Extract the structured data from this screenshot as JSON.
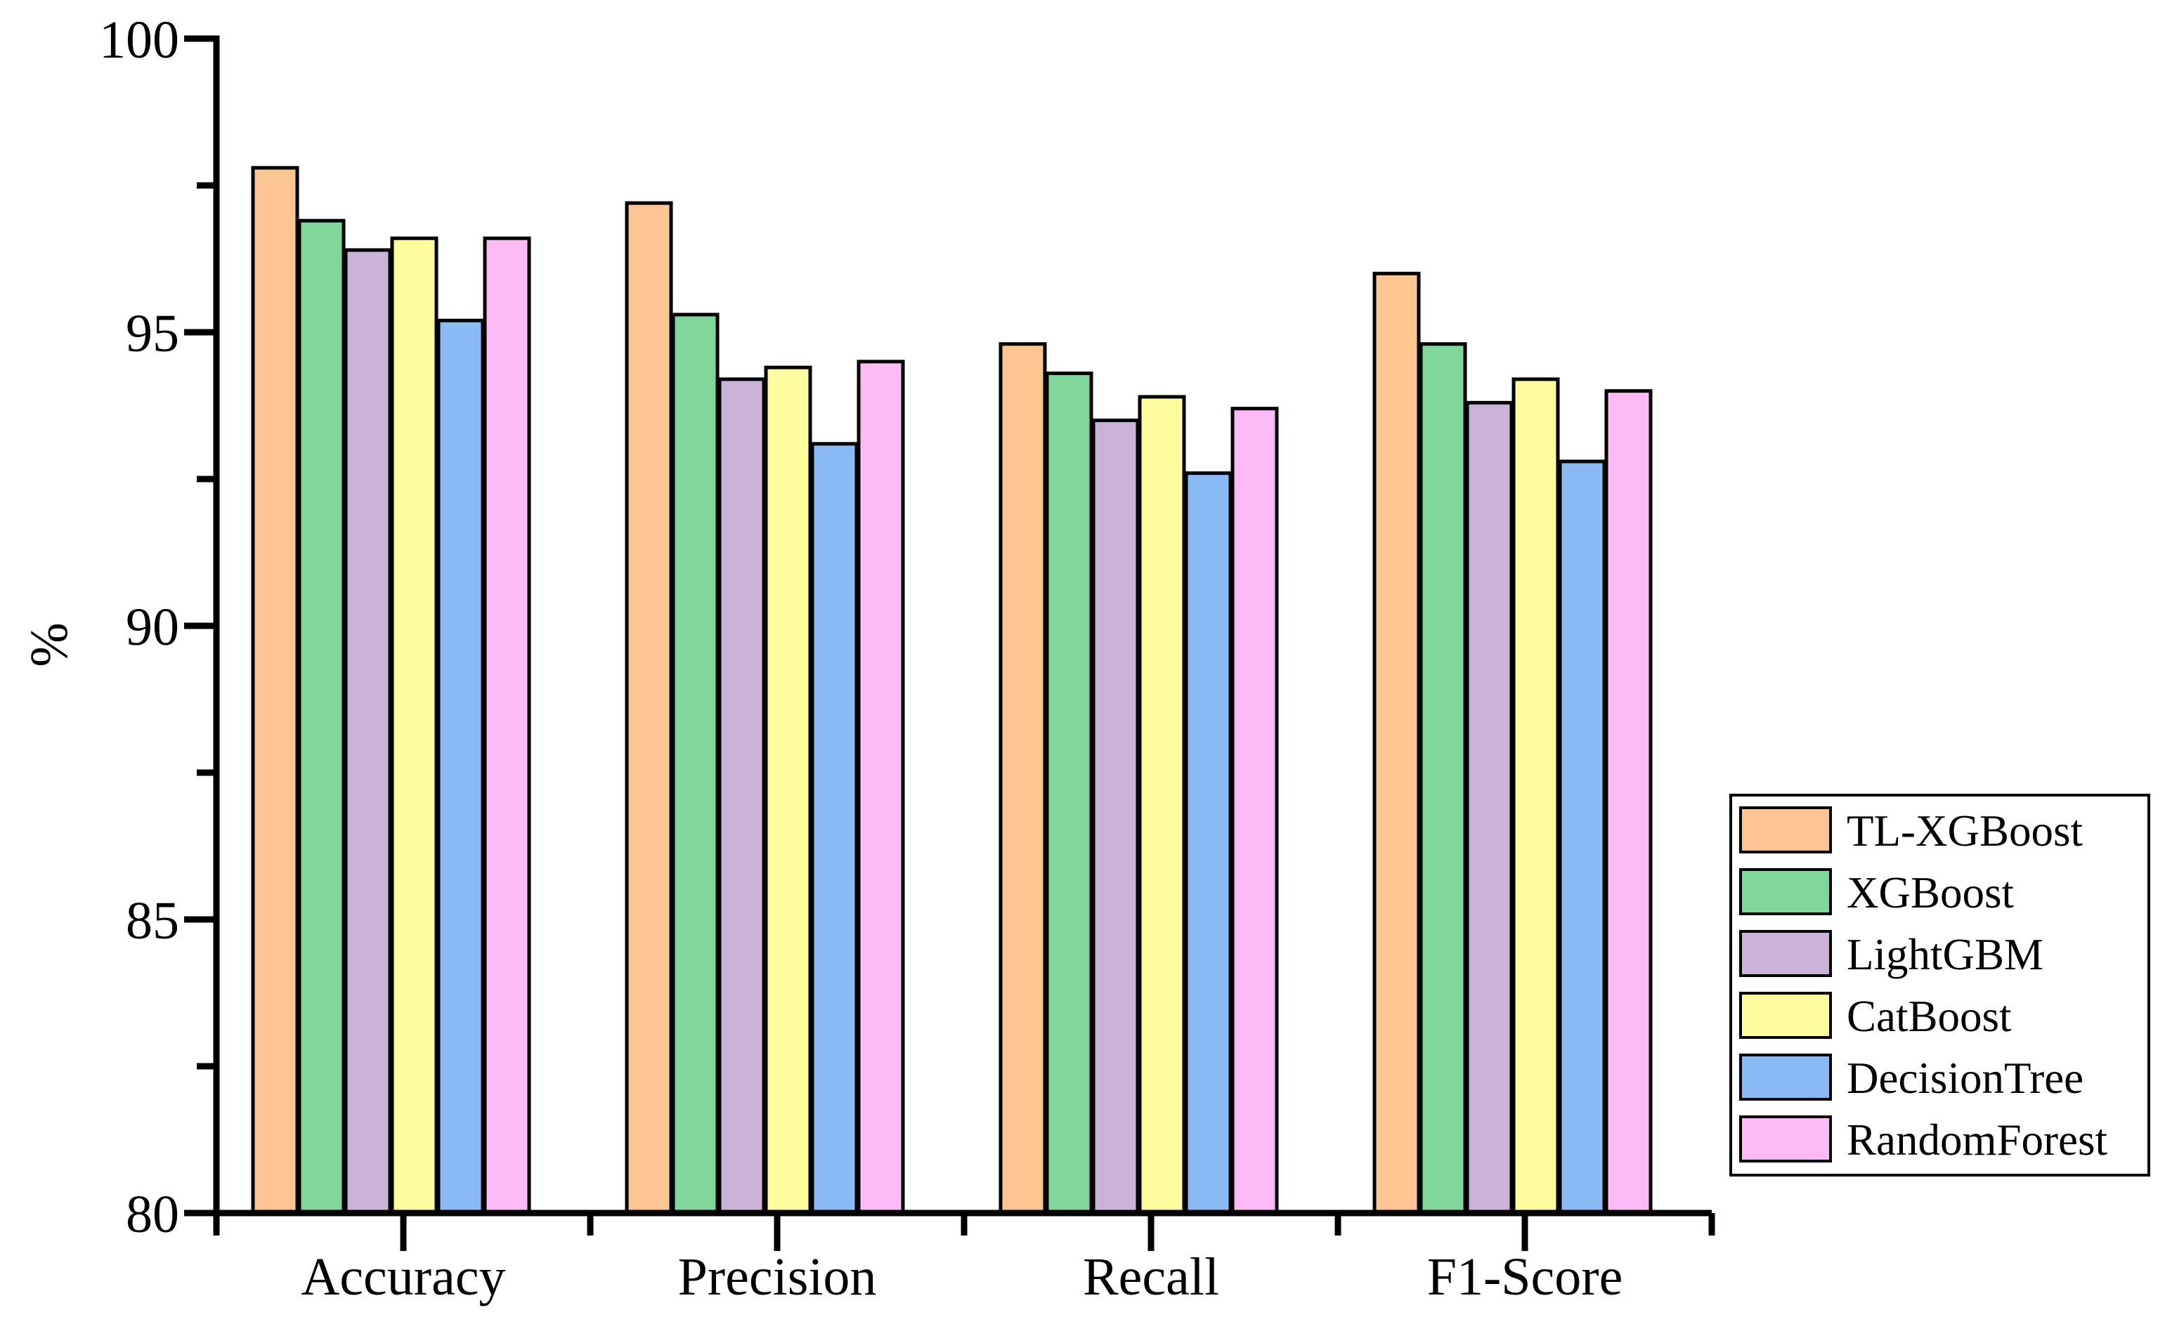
{
  "chart_data": {
    "type": "bar",
    "title": "",
    "xlabel": "",
    "ylabel": "%",
    "ylim": [
      80,
      100
    ],
    "yticks_major": [
      80,
      85,
      90,
      95,
      100
    ],
    "yticks_minor": [
      82.5,
      87.5,
      92.5,
      97.5
    ],
    "grid": false,
    "legend_position": "outside-right-lower",
    "categories": [
      "Accuracy",
      "Precision",
      "Recall",
      "F1-Score"
    ],
    "series": [
      {
        "name": "TL-XGBoost",
        "color": "#fdc591",
        "values": [
          97.8,
          97.2,
          94.8,
          96.0
        ]
      },
      {
        "name": "XGBoost",
        "color": "#7fd69b",
        "values": [
          96.9,
          95.3,
          94.3,
          94.8
        ]
      },
      {
        "name": "LightGBM",
        "color": "#c9b2d6",
        "values": [
          96.4,
          94.2,
          93.5,
          93.8
        ]
      },
      {
        "name": "CatBoost",
        "color": "#fdfd9d",
        "values": [
          96.6,
          94.4,
          93.9,
          94.2
        ]
      },
      {
        "name": "DecisionTree",
        "color": "#8abaf3",
        "values": [
          95.2,
          93.1,
          92.6,
          92.8
        ]
      },
      {
        "name": "RandomForest",
        "color": "#fcbaf5",
        "values": [
          96.6,
          94.5,
          93.7,
          94.0
        ]
      }
    ],
    "bar_outline_color": "#000000",
    "axis_color": "#000000",
    "legend_border_color": "#000000",
    "legend_background": "#ffffff"
  }
}
